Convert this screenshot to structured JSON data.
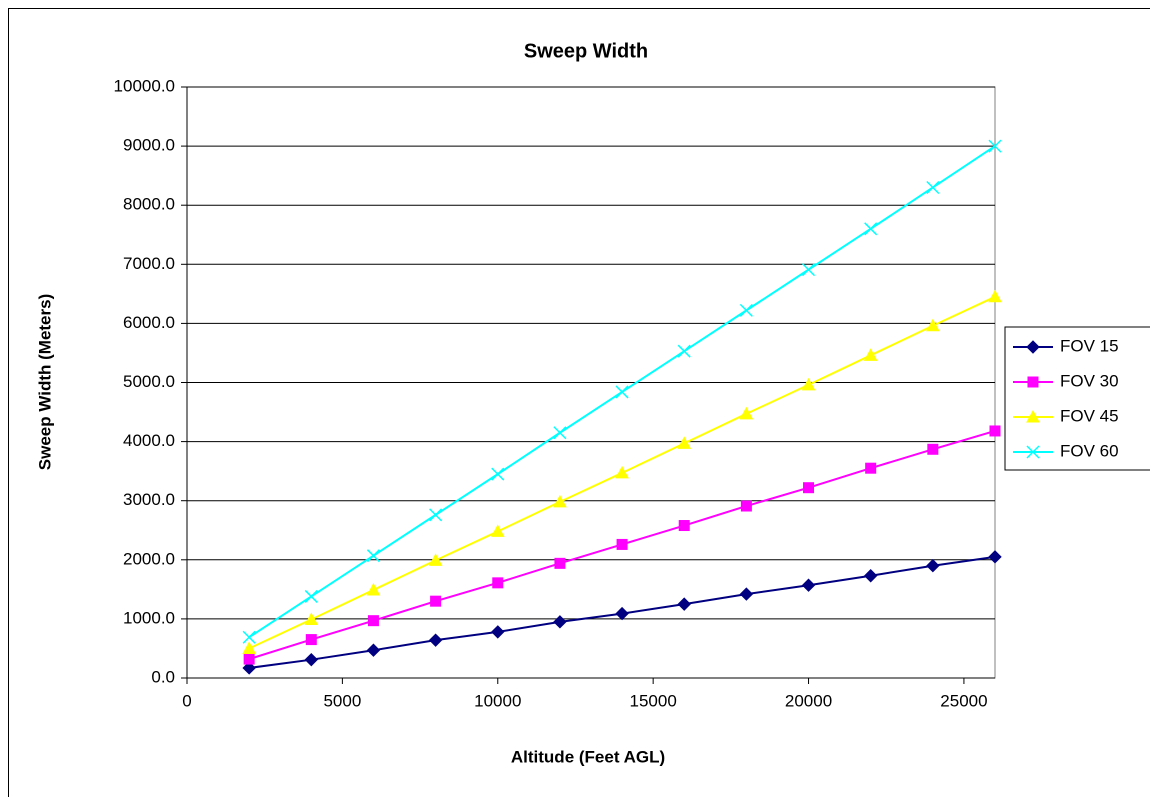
{
  "chart_data": {
    "type": "line",
    "title": "Sweep Width",
    "x_label": "Altitude (Feet AGL)",
    "y_label": "Sweep Width (Meters)",
    "x": [
      2000,
      4000,
      6000,
      8000,
      10000,
      12000,
      14000,
      16000,
      18000,
      20000,
      22000,
      24000,
      26000
    ],
    "series": [
      {
        "name": "FOV 15",
        "color": "#000080",
        "marker": "diamond",
        "values": [
          170,
          310,
          470,
          640,
          780,
          950,
          1090,
          1250,
          1420,
          1570,
          1730,
          1900,
          2050
        ]
      },
      {
        "name": "FOV 30",
        "color": "#ff00ff",
        "marker": "square",
        "values": [
          320,
          650,
          970,
          1300,
          1610,
          1940,
          2260,
          2580,
          2910,
          3220,
          3550,
          3870,
          4180
        ]
      },
      {
        "name": "FOV 45",
        "color": "#ffff00",
        "marker": "triangle",
        "values": [
          500,
          990,
          1490,
          1990,
          2480,
          2980,
          3470,
          3970,
          4470,
          4960,
          5460,
          5960,
          6450
        ]
      },
      {
        "name": "FOV 60",
        "color": "#00ffff",
        "marker": "x",
        "values": [
          690,
          1380,
          2070,
          2760,
          3450,
          4150,
          4840,
          5530,
          6220,
          6910,
          7600,
          8300,
          9000
        ]
      }
    ],
    "xlim": [
      0,
      26000
    ],
    "xticks": [
      0,
      5000,
      10000,
      15000,
      20000,
      25000
    ],
    "ylim": [
      0,
      10000
    ],
    "yticks": [
      {
        "value": 0,
        "label": "0.0"
      },
      {
        "value": 1000,
        "label": "1000.0"
      },
      {
        "value": 2000,
        "label": "2000.0"
      },
      {
        "value": 3000,
        "label": "3000.0"
      },
      {
        "value": 4000,
        "label": "4000.0"
      },
      {
        "value": 5000,
        "label": "5000.0"
      },
      {
        "value": 6000,
        "label": "6000.0"
      },
      {
        "value": 7000,
        "label": "7000.0"
      },
      {
        "value": 8000,
        "label": "8000.0"
      },
      {
        "value": 9000,
        "label": "9000.0"
      },
      {
        "value": 10000,
        "label": "10000.0"
      }
    ],
    "grid": true,
    "legend": "right"
  }
}
